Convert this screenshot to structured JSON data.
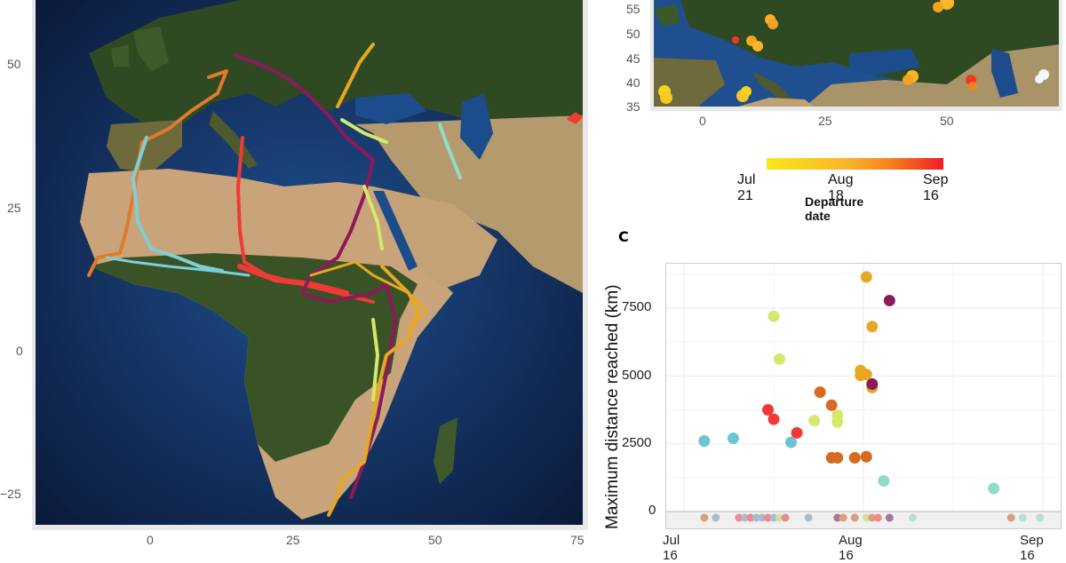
{
  "panels": {
    "A": {
      "type": "map",
      "x_ticks": [
        "0",
        "25",
        "50",
        "75"
      ],
      "y_ticks": [
        "50",
        "25",
        "0",
        "−25"
      ]
    },
    "B": {
      "type": "map",
      "x_ticks": [
        "0",
        "25",
        "50"
      ],
      "y_ticks": [
        "55",
        "50",
        "45",
        "40",
        "35"
      ],
      "legend": {
        "title": "Departure date",
        "labels": [
          "Jul 21",
          "Aug 18",
          "Sep 16"
        ],
        "colors": [
          "#f8e71c",
          "#f5821f",
          "#ee1c24"
        ]
      }
    },
    "C": {
      "letter": "C"
    }
  },
  "chart_data": [
    {
      "type": "map",
      "panel": "A",
      "description": "Migration tracks over satellite map of Europe/Africa/Middle East",
      "xlabel": "",
      "ylabel": "",
      "xlim": [
        -20,
        75
      ],
      "ylim": [
        -30,
        62
      ],
      "x_ticks": [
        0,
        25,
        50,
        75
      ],
      "y_ticks": [
        50,
        25,
        0,
        -25
      ],
      "series_colors": [
        "#e07a2c",
        "#7ecfd8",
        "#f03a35",
        "#8c1a5a",
        "#e6a823",
        "#d4e86a",
        "#8fdccb"
      ]
    },
    {
      "type": "scatter",
      "panel": "B",
      "description": "Departure locations coloured by departure date",
      "xlim": [
        -10,
        70
      ],
      "ylim": [
        35,
        57
      ],
      "x_ticks": [
        0,
        25,
        50
      ],
      "y_ticks": [
        35,
        40,
        45,
        50,
        55
      ],
      "points": [
        {
          "lon": -6,
          "lat": 37,
          "date": "early"
        },
        {
          "lon": 10,
          "lat": 37,
          "date": "early"
        },
        {
          "lon": 15,
          "lat": 51.5,
          "date": "mid"
        },
        {
          "lon": 9,
          "lat": 47.5,
          "date": "mid"
        },
        {
          "lon": 8,
          "lat": 48.5,
          "date": "late"
        },
        {
          "lon": 26,
          "lat": 40.5,
          "date": "mid"
        },
        {
          "lon": 36,
          "lat": 55.5,
          "date": "mid"
        },
        {
          "lon": 45,
          "lat": 40,
          "date": "late"
        },
        {
          "lon": 68,
          "lat": 41,
          "date": "none"
        }
      ],
      "legend": {
        "title": "Departure date",
        "labels": [
          "Jul 21",
          "Aug 18",
          "Sep 16"
        ],
        "position": "bottom"
      }
    },
    {
      "type": "scatter",
      "panel": "C",
      "title": "",
      "xlabel": "",
      "ylabel": "Maximum distance reached (km)",
      "x_ticks": [
        "Jul 16",
        "Aug 16",
        "Sep 16"
      ],
      "y_ticks": [
        0,
        2500,
        5000,
        7500
      ],
      "ylim": [
        -700,
        9000
      ],
      "grid": true,
      "points": [
        {
          "day": 3.5,
          "km": 2600,
          "color": "#6cc5d1"
        },
        {
          "day": 8.5,
          "km": 2700,
          "color": "#6cc5d1"
        },
        {
          "day": 18.5,
          "km": 2550,
          "color": "#6cc5d1"
        },
        {
          "day": 15.5,
          "km": 7200,
          "color": "#d4e86a"
        },
        {
          "day": 16.5,
          "km": 5620,
          "color": "#d4e86a"
        },
        {
          "day": 14.5,
          "km": 3750,
          "color": "#f03a35"
        },
        {
          "day": 15.5,
          "km": 3400,
          "color": "#f03a35"
        },
        {
          "day": 19.5,
          "km": 2900,
          "color": "#f03a35"
        },
        {
          "day": 22.5,
          "km": 3350,
          "color": "#d4e86a"
        },
        {
          "day": 26.5,
          "km": 3550,
          "color": "#d4e86a"
        },
        {
          "day": 26.5,
          "km": 3300,
          "color": "#d4e86a"
        },
        {
          "day": 23.5,
          "km": 4400,
          "color": "#d66a1f"
        },
        {
          "day": 25.5,
          "km": 3920,
          "color": "#d66a1f"
        },
        {
          "day": 25.5,
          "km": 1980,
          "color": "#d66a1f"
        },
        {
          "day": 26.5,
          "km": 1980,
          "color": "#d66a1f"
        },
        {
          "day": 29.5,
          "km": 1980,
          "color": "#d66a1f"
        },
        {
          "day": 31.5,
          "km": 2020,
          "color": "#d66a1f"
        },
        {
          "day": 31.5,
          "km": 8650,
          "color": "#e6a823"
        },
        {
          "day": 32.5,
          "km": 6820,
          "color": "#e6a823"
        },
        {
          "day": 30.5,
          "km": 5200,
          "color": "#e6a823"
        },
        {
          "day": 30.5,
          "km": 5020,
          "color": "#e6a823"
        },
        {
          "day": 31.5,
          "km": 5050,
          "color": "#e6a823"
        },
        {
          "day": 32.5,
          "km": 4570,
          "color": "#e6a823"
        },
        {
          "day": 32.5,
          "km": 4700,
          "color": "#8c1a5a"
        },
        {
          "day": 35.5,
          "km": 7780,
          "color": "#8c1a5a"
        },
        {
          "day": 34.5,
          "km": 1130,
          "color": "#8fdccb"
        },
        {
          "day": 53.5,
          "km": 850,
          "color": "#8fdccb"
        }
      ],
      "zero_strip_points": [
        {
          "day": 3.5,
          "color": "#d9a07a"
        },
        {
          "day": 5.5,
          "color": "#a9bccb"
        },
        {
          "day": 9.5,
          "color": "#ef8a8a"
        },
        {
          "day": 10.5,
          "color": "#a9bccb"
        },
        {
          "day": 11.5,
          "color": "#ef8a8a"
        },
        {
          "day": 12.5,
          "color": "#a9bccb"
        },
        {
          "day": 13.5,
          "color": "#a9bccb"
        },
        {
          "day": 14.5,
          "color": "#ef8a8a"
        },
        {
          "day": 15.5,
          "color": "#a9bccb"
        },
        {
          "day": 16.5,
          "color": "#d4e0a0"
        },
        {
          "day": 17.5,
          "color": "#ef8a8a"
        },
        {
          "day": 21.5,
          "color": "#a9bccb"
        },
        {
          "day": 26.5,
          "color": "#a9769a"
        },
        {
          "day": 27.5,
          "color": "#d9a07a"
        },
        {
          "day": 29.5,
          "color": "#d9a07a"
        },
        {
          "day": 31.5,
          "color": "#d4e0a0"
        },
        {
          "day": 32.5,
          "color": "#d9a07a"
        },
        {
          "day": 33.5,
          "color": "#ef8a8a"
        },
        {
          "day": 35.5,
          "color": "#a9769a"
        },
        {
          "day": 39.5,
          "color": "#b6e2cc"
        },
        {
          "day": 56.5,
          "color": "#d9a07a"
        },
        {
          "day": 58.5,
          "color": "#b6e2cc"
        },
        {
          "day": 61.5,
          "color": "#b6e2cc"
        }
      ]
    }
  ]
}
